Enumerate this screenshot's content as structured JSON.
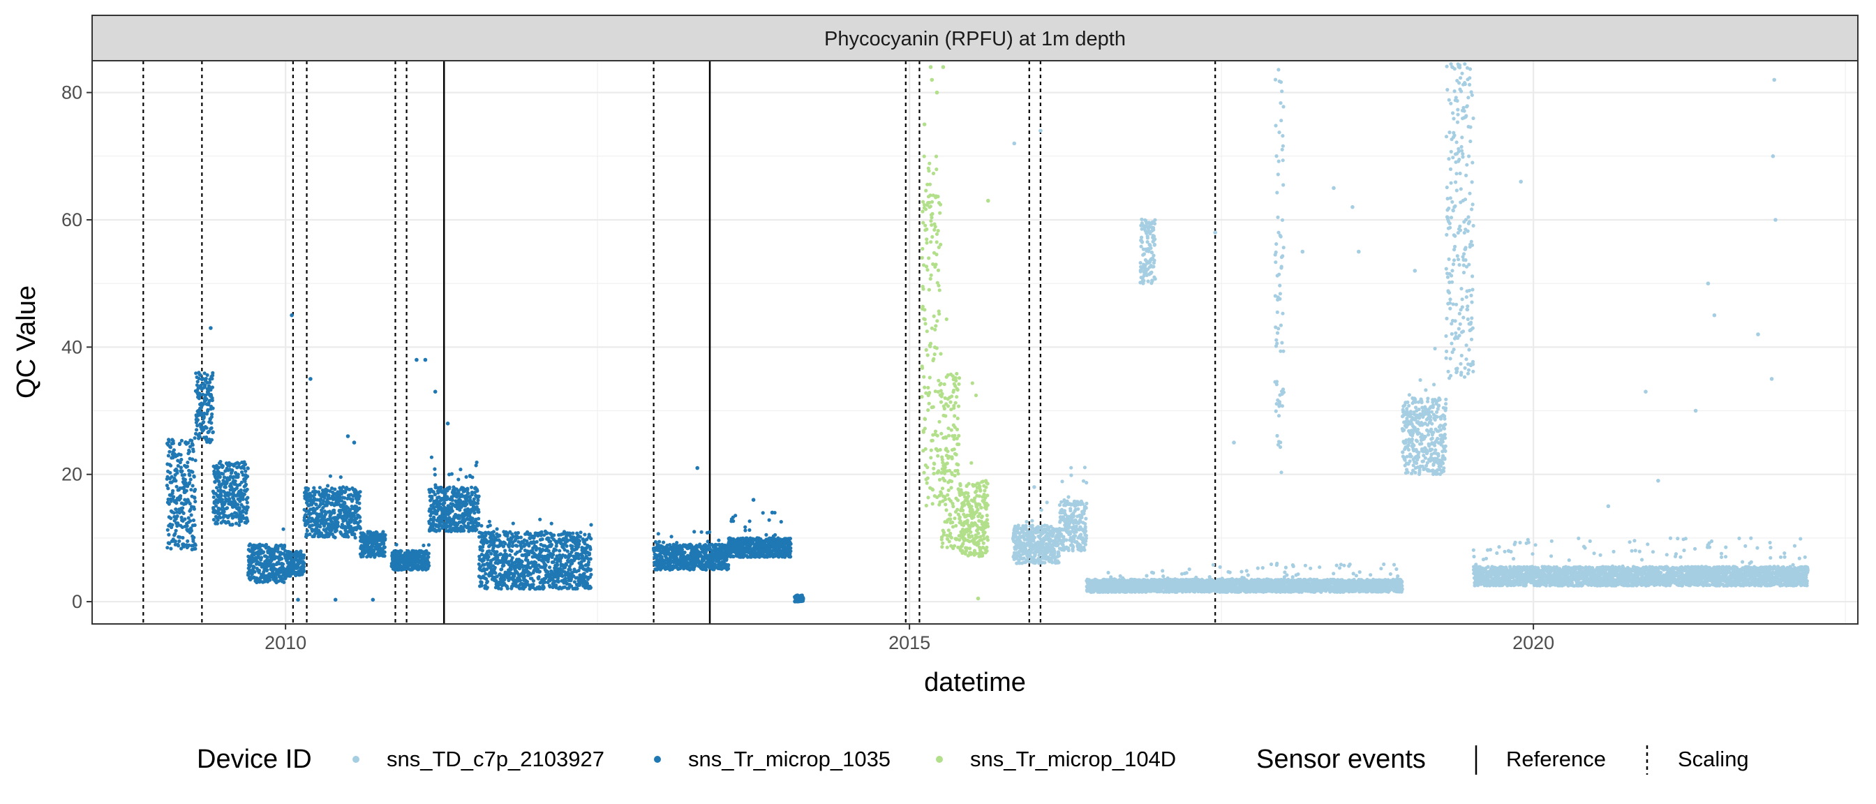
{
  "chart_data": {
    "type": "scatter",
    "title": "",
    "strip_title": "Phycocyanin (RPFU) at 1m depth",
    "xlabel": "datetime",
    "ylabel": "QC Value",
    "xlim": [
      2008.45,
      2022.6
    ],
    "ylim": [
      -3.5,
      85
    ],
    "x_ticks": [
      2010,
      2015,
      2020
    ],
    "x_tick_labels": [
      "2010",
      "2015",
      "2020"
    ],
    "y_ticks": [
      0,
      20,
      40,
      60,
      80
    ],
    "y_tick_labels": [
      "0",
      "20",
      "40",
      "60",
      "80"
    ],
    "grid": true,
    "legend_position": "bottom",
    "legend": {
      "device_title": "Device ID",
      "events_title": "Sensor events",
      "event_labels": {
        "reference": "Reference",
        "scaling": "Scaling"
      }
    },
    "series": [
      {
        "name": "sns_TD_c7p_2103927",
        "color": "#a6cee3",
        "segments": [
          {
            "x0": 2015.83,
            "x1": 2016.2,
            "base": 6,
            "amp": 6,
            "peak": 16
          },
          {
            "x0": 2016.2,
            "x1": 2016.42,
            "base": 8,
            "amp": 8,
            "peak": 22
          },
          {
            "x0": 2016.42,
            "x1": 2017.2,
            "base": 1.5,
            "amp": 2,
            "peak": 5
          },
          {
            "x0": 2016.85,
            "x1": 2016.97,
            "base": 50,
            "amp": 10,
            "peak": 61
          },
          {
            "x0": 2017.2,
            "x1": 2018.95,
            "base": 1.5,
            "amp": 2,
            "peak": 6
          },
          {
            "x0": 2017.93,
            "x1": 2018.0,
            "base": 20,
            "amp": 65,
            "peak": 85
          },
          {
            "x0": 2018.95,
            "x1": 2019.3,
            "base": 20,
            "amp": 12,
            "peak": 40
          },
          {
            "x0": 2019.3,
            "x1": 2019.52,
            "base": 35,
            "amp": 50,
            "peak": 85
          },
          {
            "x0": 2019.52,
            "x1": 2022.2,
            "base": 2.5,
            "amp": 3,
            "peak": 10
          }
        ],
        "outliers": [
          [
            2015.84,
            72
          ],
          [
            2016.05,
            74
          ],
          [
            2017.45,
            58
          ],
          [
            2018.4,
            65
          ],
          [
            2018.55,
            62
          ],
          [
            2018.6,
            55
          ],
          [
            2019.05,
            52
          ],
          [
            2019.9,
            66
          ],
          [
            2021.4,
            50
          ],
          [
            2021.45,
            45
          ],
          [
            2021.8,
            42
          ],
          [
            2021.93,
            82
          ],
          [
            2021.92,
            70
          ],
          [
            2021.94,
            60
          ],
          [
            2021.91,
            35
          ],
          [
            2020.9,
            33
          ],
          [
            2021.3,
            30
          ],
          [
            2016.0,
            18
          ],
          [
            2017.6,
            25
          ],
          [
            2018.15,
            55
          ],
          [
            2020.6,
            15
          ],
          [
            2021.0,
            19
          ]
        ]
      },
      {
        "name": "sns_Tr_microp_1035",
        "color": "#1f78b4",
        "segments": [
          {
            "x0": 2009.05,
            "x1": 2009.28,
            "base": 8,
            "amp": 18,
            "peak": 26
          },
          {
            "x0": 2009.28,
            "x1": 2009.42,
            "base": 25,
            "amp": 11,
            "peak": 36
          },
          {
            "x0": 2009.42,
            "x1": 2009.7,
            "base": 12,
            "amp": 10,
            "peak": 22
          },
          {
            "x0": 2009.7,
            "x1": 2010.0,
            "base": 3,
            "amp": 6,
            "peak": 12
          },
          {
            "x0": 2010.0,
            "x1": 2010.15,
            "base": 4,
            "amp": 4,
            "peak": 8
          },
          {
            "x0": 2010.15,
            "x1": 2010.6,
            "base": 10,
            "amp": 8,
            "peak": 20
          },
          {
            "x0": 2010.6,
            "x1": 2010.8,
            "base": 7,
            "amp": 4,
            "peak": 12
          },
          {
            "x0": 2010.85,
            "x1": 2011.15,
            "base": 5,
            "amp": 3,
            "peak": 9
          },
          {
            "x0": 2011.15,
            "x1": 2011.55,
            "base": 11,
            "amp": 7,
            "peak": 23
          },
          {
            "x0": 2011.55,
            "x1": 2012.45,
            "base": 2,
            "amp": 9,
            "peak": 13
          },
          {
            "x0": 2012.95,
            "x1": 2013.55,
            "base": 5,
            "amp": 4,
            "peak": 11
          },
          {
            "x0": 2013.55,
            "x1": 2014.05,
            "base": 7,
            "amp": 3,
            "peak": 14
          },
          {
            "x0": 2014.08,
            "x1": 2014.15,
            "base": 0,
            "amp": 1,
            "peak": 1
          }
        ],
        "outliers": [
          [
            2009.4,
            43
          ],
          [
            2010.05,
            45
          ],
          [
            2010.2,
            35
          ],
          [
            2010.5,
            26
          ],
          [
            2010.55,
            25
          ],
          [
            2011.05,
            38
          ],
          [
            2011.12,
            38
          ],
          [
            2011.2,
            33
          ],
          [
            2011.3,
            28
          ],
          [
            2013.3,
            21
          ],
          [
            2013.75,
            16
          ],
          [
            2013.9,
            14
          ],
          [
            2010.4,
            0.3
          ],
          [
            2010.7,
            0.3
          ],
          [
            2010.1,
            0.3
          ]
        ]
      },
      {
        "name": "sns_Tr_microp_104D",
        "color": "#b2df8a",
        "segments": [
          {
            "x0": 2015.1,
            "x1": 2015.25,
            "base": 15,
            "amp": 55,
            "peak": 84
          },
          {
            "x0": 2015.25,
            "x1": 2015.4,
            "base": 8,
            "amp": 28,
            "peak": 45
          },
          {
            "x0": 2015.4,
            "x1": 2015.63,
            "base": 7,
            "amp": 12,
            "peak": 36
          }
        ],
        "outliers": [
          [
            2015.17,
            84
          ],
          [
            2015.18,
            82
          ],
          [
            2015.27,
            84
          ],
          [
            2015.22,
            80
          ],
          [
            2015.63,
            63
          ],
          [
            2015.55,
            0.5
          ],
          [
            2015.12,
            75
          ]
        ]
      }
    ],
    "events": {
      "reference": [
        2011.27,
        2013.4
      ],
      "scaling": [
        2008.86,
        2009.33,
        2010.06,
        2010.17,
        2010.88,
        2010.97,
        2012.95,
        2014.97,
        2015.08,
        2015.96,
        2016.05,
        2017.45
      ]
    }
  }
}
